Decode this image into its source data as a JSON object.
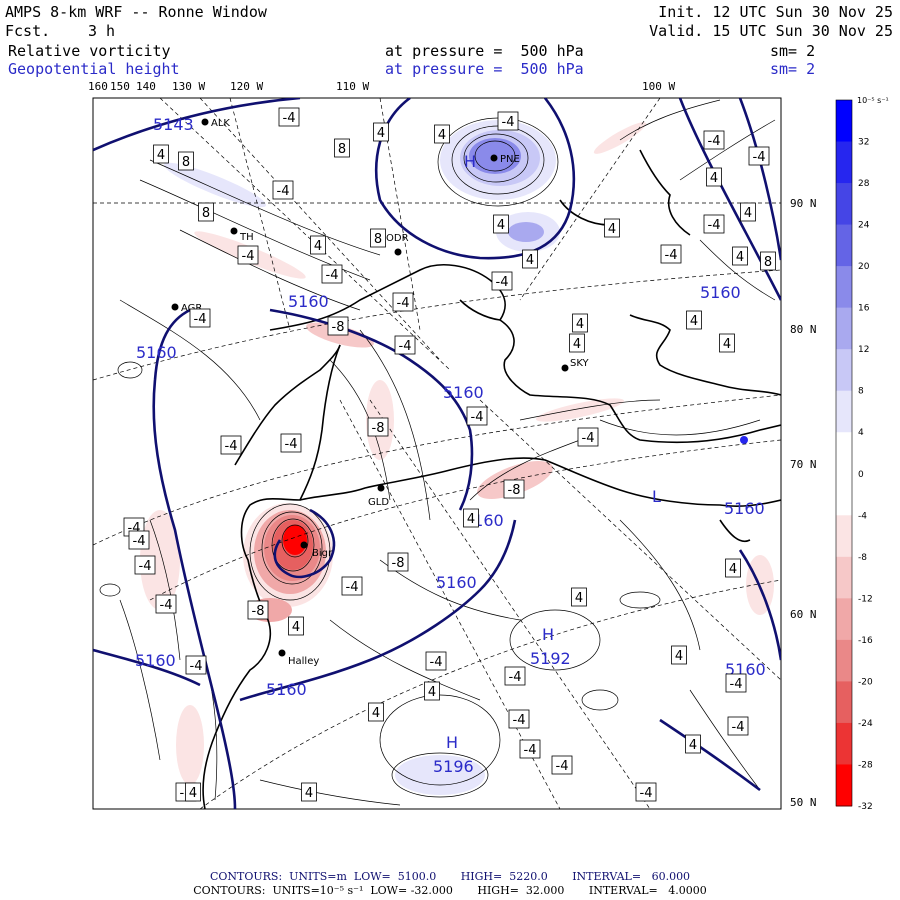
{
  "header": {
    "model": "AMPS 8-km WRF -- Ronne Window",
    "fcst_label": "Fcst.",
    "fcst_value": "3 h",
    "init": "Init. 12 UTC Sun 30 Nov 25",
    "valid": "Valid. 15 UTC Sun 30 Nov 25",
    "field1": {
      "name": "Relative vorticity",
      "level": "at pressure =  500 hPa",
      "sm": "sm= 2"
    },
    "field2": {
      "name": "Geopotential height",
      "level": "at pressure =  500 hPa",
      "sm": "sm= 2"
    }
  },
  "top_longitudes": [
    "160",
    "150",
    "140",
    "130 W",
    "120 W",
    "110 W",
    "100 W"
  ],
  "right_latitudes": [
    "90 N",
    "80 N",
    "70 N",
    "60 N",
    "50 N"
  ],
  "colorbar": {
    "unit_label": "10⁻⁵ s⁻¹",
    "ticks": [
      "32",
      "28",
      "24",
      "20",
      "16",
      "12",
      "8",
      "4",
      "0",
      "-4",
      "-8",
      "-12",
      "-16",
      "-20",
      "-24",
      "-28",
      "-32"
    ],
    "colors": [
      "#0000ff",
      "#2626ef",
      "#4545e6",
      "#6464e6",
      "#8a8aea",
      "#a9a9ef",
      "#c8c8f6",
      "#e6e6fb",
      "#ffffff",
      "#ffffff",
      "#fbe4e4",
      "#f6c8c8",
      "#f0a8a8",
      "#ea8888",
      "#e66060",
      "#ec3434",
      "#ff0000"
    ]
  },
  "stations": [
    "ALK",
    "PNE",
    "TH",
    "ODR",
    "AGR",
    "SKY",
    "GLD",
    "Halley",
    "Bigr"
  ],
  "height_labels": [
    "5143",
    "5160",
    "5160",
    "5160",
    "5160",
    "5160",
    "5160",
    "5160",
    "5160",
    "5160",
    "5192",
    "5196"
  ],
  "hl_markers": [
    "H",
    "H",
    "H",
    "L"
  ],
  "vort_boxes": [
    "-4",
    "4",
    "8",
    "8",
    "4",
    "4",
    "-4",
    "-4",
    "-4",
    "4",
    "-4",
    "8",
    "8",
    "4",
    "-4",
    "4",
    "4",
    "-4",
    "-4",
    "-4",
    "4",
    "4",
    "8",
    "-8",
    "-4",
    "4",
    "-4",
    "-4",
    "4",
    "-4",
    "4",
    "4",
    "4",
    "-8",
    "-4",
    "-4",
    "-4",
    "-8",
    "-4",
    "-4",
    "-4",
    "-4",
    "-4",
    "-4",
    "-8",
    "4",
    "-8",
    "4",
    "-4",
    "-8",
    "-4",
    "-4",
    "4",
    "4",
    "-4",
    "4",
    "4",
    "-4",
    "-4",
    "-4",
    "4",
    "-4",
    "-4",
    "4",
    "4",
    "4",
    "4"
  ],
  "footer": {
    "line1": "CONTOURS:  UNITS=m  LOW=  5100.0       HIGH=  5220.0       INTERVAL=   60.000",
    "line2": "CONTOURS:  UNITS=10⁻⁵ s⁻¹  LOW= -32.000       HIGH=  32.000       INTERVAL=   4.0000"
  }
}
